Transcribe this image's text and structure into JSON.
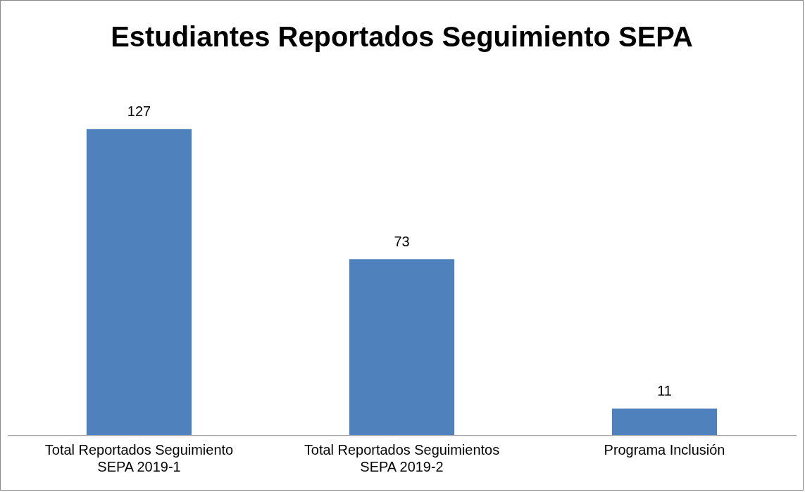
{
  "chart_data": {
    "type": "bar",
    "title": "Estudiantes Reportados Seguimiento SEPA",
    "categories": [
      "Total Reportados Seguimiento SEPA 2019-1",
      "Total Reportados Seguimientos SEPA 2019-2",
      "Programa Inclusión"
    ],
    "values": [
      127,
      73,
      11
    ],
    "color": "#4f81bd",
    "data_labels": true,
    "grid": false,
    "legend": false
  }
}
